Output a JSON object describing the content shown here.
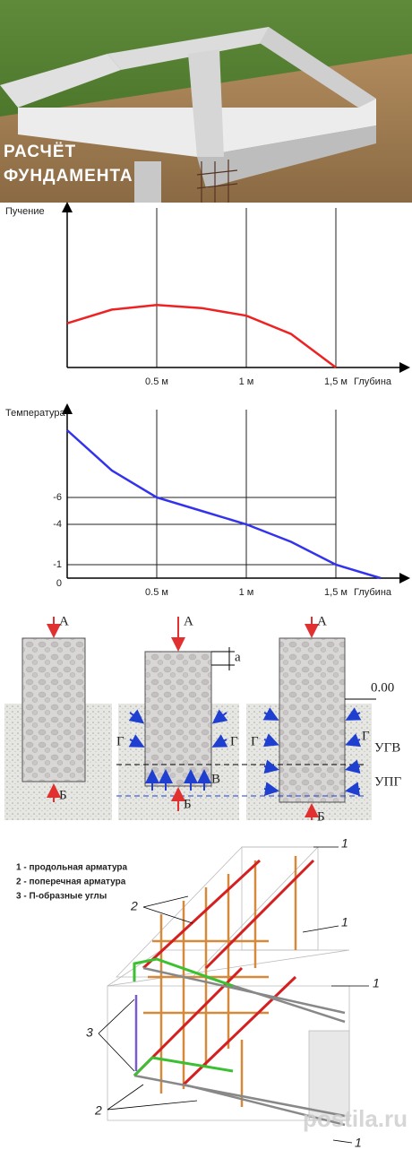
{
  "banner": {
    "title_lines": [
      "РАСЧЁТ",
      "ФУНДАМЕНТА"
    ]
  },
  "chart_data": [
    {
      "type": "line",
      "y_label": "Пучение",
      "x_label": "Глубина",
      "x": [
        0,
        0.25,
        0.5,
        0.75,
        1,
        1.25,
        1.5
      ],
      "series": [
        {
          "color": "#ee2222",
          "values": [
            0.29,
            0.38,
            0.41,
            0.39,
            0.34,
            0.22,
            0
          ]
        }
      ],
      "xlim": [
        0,
        1.9
      ],
      "ylim": [
        0,
        1
      ],
      "xticks": [
        {
          "value": 0.5,
          "label": "0.5 м"
        },
        {
          "value": 1,
          "label": "1 м"
        },
        {
          "value": 1.5,
          "label": "1,5 м"
        }
      ],
      "grid": true
    },
    {
      "type": "line",
      "y_label": "Температура",
      "x_label": "Глубина",
      "x": [
        0,
        0.25,
        0.5,
        0.75,
        1,
        1.25,
        1.5,
        1.75
      ],
      "series": [
        {
          "color": "#3333ee",
          "values": [
            -11,
            -8,
            -6,
            -5,
            -4,
            -2.7,
            -1,
            0
          ]
        }
      ],
      "xlim": [
        0,
        1.9
      ],
      "ylim": [
        0,
        -12
      ],
      "xticks": [
        {
          "value": 0.5,
          "label": "0.5 м"
        },
        {
          "value": 1,
          "label": "1 м"
        },
        {
          "value": 1.5,
          "label": "1,5 м"
        }
      ],
      "yticks": [
        0,
        -1,
        -4,
        -6
      ],
      "grid": true
    }
  ],
  "load_diagram": {
    "load_top": "А",
    "load_bottom": "Б",
    "side": "Г",
    "base": "В",
    "height_mark": "а",
    "level": "0.00",
    "groundwater": "УГВ",
    "frost": "УПГ"
  },
  "rebar_diagram": {
    "legend": [
      "1 - продольная арматура",
      "2 - поперечная арматура",
      "3 - П-образные углы"
    ],
    "callouts": [
      "1",
      "2",
      "3"
    ]
  },
  "watermark": "postila.ru"
}
